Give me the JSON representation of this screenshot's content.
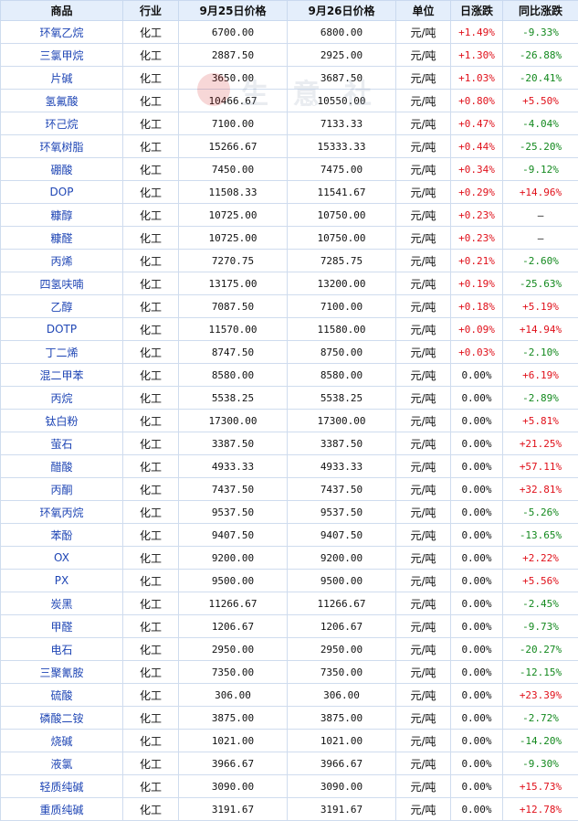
{
  "headers": [
    "商品",
    "行业",
    "9月25日价格",
    "9月26日价格",
    "单位",
    "日涨跌",
    "同比涨跌"
  ],
  "watermark": {
    "text": "生 意 社",
    "url": "100"
  },
  "rows": [
    {
      "name": "环氧乙烷",
      "industry": "化工",
      "p1": "6700.00",
      "p2": "6800.00",
      "unit": "元/吨",
      "day": "+1.49%",
      "yoy": "-9.33%"
    },
    {
      "name": "三氯甲烷",
      "industry": "化工",
      "p1": "2887.50",
      "p2": "2925.00",
      "unit": "元/吨",
      "day": "+1.30%",
      "yoy": "-26.88%"
    },
    {
      "name": "片碱",
      "industry": "化工",
      "p1": "3650.00",
      "p2": "3687.50",
      "unit": "元/吨",
      "day": "+1.03%",
      "yoy": "-20.41%"
    },
    {
      "name": "氢氟酸",
      "industry": "化工",
      "p1": "10466.67",
      "p2": "10550.00",
      "unit": "元/吨",
      "day": "+0.80%",
      "yoy": "+5.50%"
    },
    {
      "name": "环己烷",
      "industry": "化工",
      "p1": "7100.00",
      "p2": "7133.33",
      "unit": "元/吨",
      "day": "+0.47%",
      "yoy": "-4.04%"
    },
    {
      "name": "环氧树脂",
      "industry": "化工",
      "p1": "15266.67",
      "p2": "15333.33",
      "unit": "元/吨",
      "day": "+0.44%",
      "yoy": "-25.20%"
    },
    {
      "name": "硼酸",
      "industry": "化工",
      "p1": "7450.00",
      "p2": "7475.00",
      "unit": "元/吨",
      "day": "+0.34%",
      "yoy": "-9.12%"
    },
    {
      "name": "DOP",
      "industry": "化工",
      "p1": "11508.33",
      "p2": "11541.67",
      "unit": "元/吨",
      "day": "+0.29%",
      "yoy": "+14.96%"
    },
    {
      "name": "糠醇",
      "industry": "化工",
      "p1": "10725.00",
      "p2": "10750.00",
      "unit": "元/吨",
      "day": "+0.23%",
      "yoy": "—"
    },
    {
      "name": "糠醛",
      "industry": "化工",
      "p1": "10725.00",
      "p2": "10750.00",
      "unit": "元/吨",
      "day": "+0.23%",
      "yoy": "—"
    },
    {
      "name": "丙烯",
      "industry": "化工",
      "p1": "7270.75",
      "p2": "7285.75",
      "unit": "元/吨",
      "day": "+0.21%",
      "yoy": "-2.60%"
    },
    {
      "name": "四氢呋喃",
      "industry": "化工",
      "p1": "13175.00",
      "p2": "13200.00",
      "unit": "元/吨",
      "day": "+0.19%",
      "yoy": "-25.63%"
    },
    {
      "name": "乙醇",
      "industry": "化工",
      "p1": "7087.50",
      "p2": "7100.00",
      "unit": "元/吨",
      "day": "+0.18%",
      "yoy": "+5.19%"
    },
    {
      "name": "DOTP",
      "industry": "化工",
      "p1": "11570.00",
      "p2": "11580.00",
      "unit": "元/吨",
      "day": "+0.09%",
      "yoy": "+14.94%"
    },
    {
      "name": "丁二烯",
      "industry": "化工",
      "p1": "8747.50",
      "p2": "8750.00",
      "unit": "元/吨",
      "day": "+0.03%",
      "yoy": "-2.10%"
    },
    {
      "name": "混二甲苯",
      "industry": "化工",
      "p1": "8580.00",
      "p2": "8580.00",
      "unit": "元/吨",
      "day": "0.00%",
      "yoy": "+6.19%"
    },
    {
      "name": "丙烷",
      "industry": "化工",
      "p1": "5538.25",
      "p2": "5538.25",
      "unit": "元/吨",
      "day": "0.00%",
      "yoy": "-2.89%"
    },
    {
      "name": "钛白粉",
      "industry": "化工",
      "p1": "17300.00",
      "p2": "17300.00",
      "unit": "元/吨",
      "day": "0.00%",
      "yoy": "+5.81%"
    },
    {
      "name": "萤石",
      "industry": "化工",
      "p1": "3387.50",
      "p2": "3387.50",
      "unit": "元/吨",
      "day": "0.00%",
      "yoy": "+21.25%"
    },
    {
      "name": "醋酸",
      "industry": "化工",
      "p1": "4933.33",
      "p2": "4933.33",
      "unit": "元/吨",
      "day": "0.00%",
      "yoy": "+57.11%"
    },
    {
      "name": "丙酮",
      "industry": "化工",
      "p1": "7437.50",
      "p2": "7437.50",
      "unit": "元/吨",
      "day": "0.00%",
      "yoy": "+32.81%"
    },
    {
      "name": "环氧丙烷",
      "industry": "化工",
      "p1": "9537.50",
      "p2": "9537.50",
      "unit": "元/吨",
      "day": "0.00%",
      "yoy": "-5.26%"
    },
    {
      "name": "苯酚",
      "industry": "化工",
      "p1": "9407.50",
      "p2": "9407.50",
      "unit": "元/吨",
      "day": "0.00%",
      "yoy": "-13.65%"
    },
    {
      "name": "OX",
      "industry": "化工",
      "p1": "9200.00",
      "p2": "9200.00",
      "unit": "元/吨",
      "day": "0.00%",
      "yoy": "+2.22%"
    },
    {
      "name": "PX",
      "industry": "化工",
      "p1": "9500.00",
      "p2": "9500.00",
      "unit": "元/吨",
      "day": "0.00%",
      "yoy": "+5.56%"
    },
    {
      "name": "炭黑",
      "industry": "化工",
      "p1": "11266.67",
      "p2": "11266.67",
      "unit": "元/吨",
      "day": "0.00%",
      "yoy": "-2.45%"
    },
    {
      "name": "甲醛",
      "industry": "化工",
      "p1": "1206.67",
      "p2": "1206.67",
      "unit": "元/吨",
      "day": "0.00%",
      "yoy": "-9.73%"
    },
    {
      "name": "电石",
      "industry": "化工",
      "p1": "2950.00",
      "p2": "2950.00",
      "unit": "元/吨",
      "day": "0.00%",
      "yoy": "-20.27%"
    },
    {
      "name": "三聚氰胺",
      "industry": "化工",
      "p1": "7350.00",
      "p2": "7350.00",
      "unit": "元/吨",
      "day": "0.00%",
      "yoy": "-12.15%"
    },
    {
      "name": "硫酸",
      "industry": "化工",
      "p1": "306.00",
      "p2": "306.00",
      "unit": "元/吨",
      "day": "0.00%",
      "yoy": "+23.39%"
    },
    {
      "name": "磷酸二铵",
      "industry": "化工",
      "p1": "3875.00",
      "p2": "3875.00",
      "unit": "元/吨",
      "day": "0.00%",
      "yoy": "-2.72%"
    },
    {
      "name": "烧碱",
      "industry": "化工",
      "p1": "1021.00",
      "p2": "1021.00",
      "unit": "元/吨",
      "day": "0.00%",
      "yoy": "-14.20%"
    },
    {
      "name": "液氯",
      "industry": "化工",
      "p1": "3966.67",
      "p2": "3966.67",
      "unit": "元/吨",
      "day": "0.00%",
      "yoy": "-9.30%"
    },
    {
      "name": "轻质纯碱",
      "industry": "化工",
      "p1": "3090.00",
      "p2": "3090.00",
      "unit": "元/吨",
      "day": "0.00%",
      "yoy": "+15.73%"
    },
    {
      "name": "重质纯碱",
      "industry": "化工",
      "p1": "3191.67",
      "p2": "3191.67",
      "unit": "元/吨",
      "day": "0.00%",
      "yoy": "+12.78%"
    }
  ]
}
